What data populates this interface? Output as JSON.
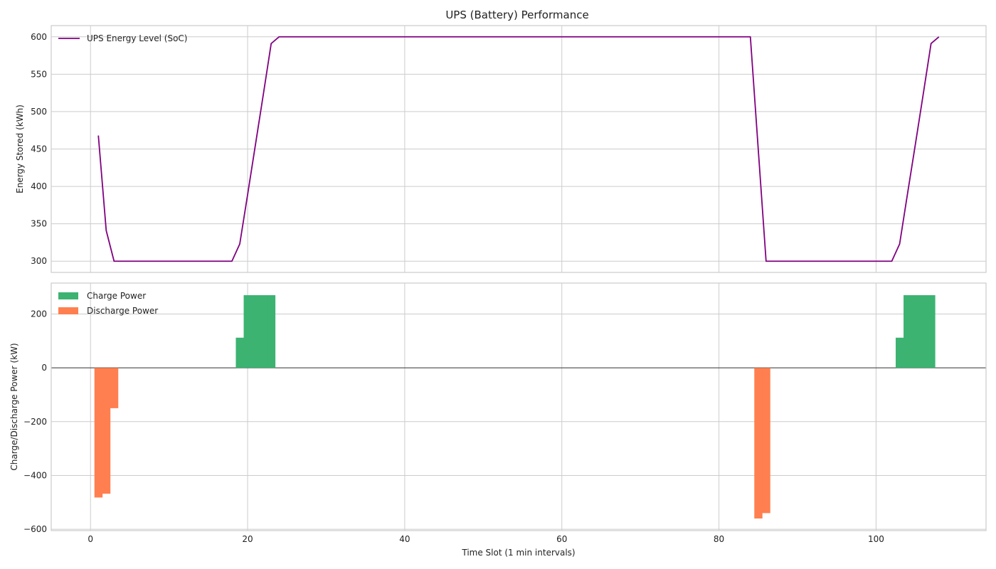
{
  "figure_title": "UPS (Battery) Performance",
  "chart_data": [
    {
      "type": "line",
      "title": "UPS (Battery) Performance",
      "xlabel": "",
      "ylabel": "Energy Stored (kWh)",
      "xlim": [
        -5,
        114
      ],
      "ylim": [
        285,
        615
      ],
      "xticks": [
        0,
        20,
        40,
        60,
        80,
        100
      ],
      "xtick_labels": [
        "",
        "",
        "",
        "",
        "",
        ""
      ],
      "yticks": [
        300,
        350,
        400,
        450,
        500,
        550,
        600
      ],
      "ytick_labels": [
        "300",
        "350",
        "400",
        "450",
        "500",
        "550",
        "600"
      ],
      "grid": true,
      "legend": "top-left",
      "series": [
        {
          "name": "UPS Energy Level (SoC)",
          "color": "#800080",
          "x": [
            1,
            2,
            3,
            4,
            5,
            6,
            7,
            8,
            9,
            10,
            11,
            12,
            13,
            14,
            15,
            16,
            17,
            18,
            19,
            20,
            21,
            22,
            23,
            24,
            25,
            30,
            40,
            50,
            60,
            70,
            80,
            84,
            85,
            86,
            87,
            90,
            95,
            100,
            102,
            103,
            104,
            105,
            106,
            107,
            108
          ],
          "y": [
            468,
            341,
            300,
            300,
            300,
            300,
            300,
            300,
            300,
            300,
            300,
            300,
            300,
            300,
            300,
            300,
            300,
            300,
            323,
            389,
            456,
            523,
            591,
            600,
            600,
            600,
            600,
            600,
            600,
            600,
            600,
            600,
            450,
            300,
            300,
            300,
            300,
            300,
            300,
            323,
            390,
            456,
            523,
            591,
            600
          ]
        }
      ]
    },
    {
      "type": "bar",
      "title": "",
      "xlabel": "Time Slot (1 min intervals)",
      "ylabel": "Charge/Discharge Power (kW)",
      "xlim": [
        -5,
        114
      ],
      "ylim": [
        -605,
        315
      ],
      "xticks": [
        0,
        20,
        40,
        60,
        80,
        100
      ],
      "xtick_labels": [
        "0",
        "20",
        "40",
        "60",
        "80",
        "100"
      ],
      "yticks": [
        -600,
        -400,
        -200,
        0,
        200
      ],
      "ytick_labels": [
        "−600",
        "−400",
        "−200",
        "0",
        "200"
      ],
      "grid": true,
      "legend": "top-left",
      "bar_width": 1,
      "series": [
        {
          "name": "Charge Power",
          "color": "#3cb371",
          "x": [
            19,
            20,
            21,
            22,
            23,
            103,
            104,
            105,
            106,
            107
          ],
          "values": [
            112,
            270,
            270,
            270,
            270,
            112,
            270,
            270,
            270,
            270
          ]
        },
        {
          "name": "Discharge Power",
          "color": "#ff7f50",
          "x": [
            1,
            2,
            3,
            85,
            86
          ],
          "values": [
            -482,
            -468,
            -150,
            -560,
            -540
          ]
        }
      ]
    }
  ]
}
